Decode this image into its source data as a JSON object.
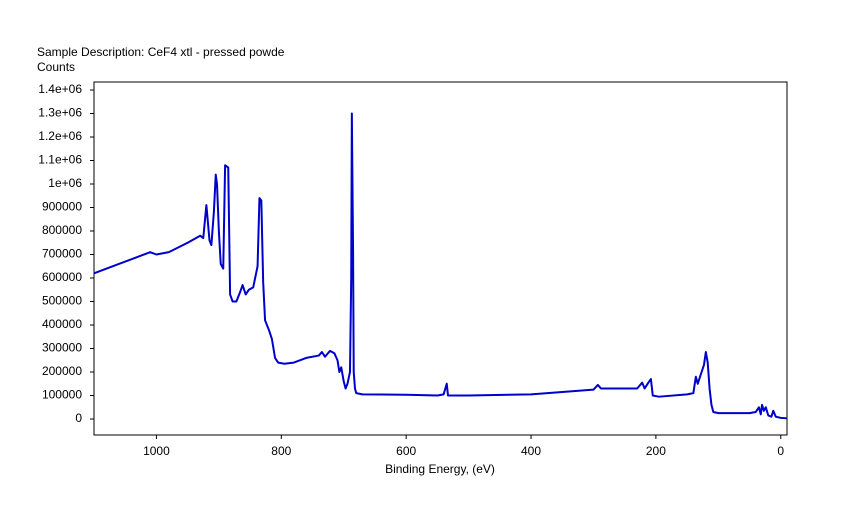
{
  "chart_data": {
    "type": "line",
    "title": "Sample Description:  CeF4 xtl - pressed powde",
    "y_label": "Counts",
    "x_label": "Binding Energy, (eV)",
    "x": [
      1100,
      1050,
      1010,
      1000,
      980,
      950,
      930,
      925,
      920,
      915,
      912,
      908,
      905,
      903,
      900,
      897,
      893,
      890,
      885,
      882,
      878,
      872,
      866,
      862,
      857,
      852,
      845,
      838,
      835,
      832,
      829,
      826,
      820,
      815,
      810,
      805,
      795,
      780,
      760,
      740,
      735,
      730,
      722,
      715,
      710,
      707,
      704,
      700,
      697,
      694,
      690,
      688,
      687,
      685,
      684,
      682,
      680,
      670,
      600,
      550,
      540,
      535,
      533,
      500,
      400,
      300,
      293,
      288,
      250,
      230,
      222,
      218,
      212,
      208,
      205,
      195,
      150,
      140,
      136,
      133,
      128,
      123,
      120,
      117,
      114,
      111,
      108,
      100,
      50,
      40,
      35,
      32,
      30,
      27,
      24,
      20,
      15,
      12,
      8,
      0,
      -10
    ],
    "series": [
      {
        "name": "Counts",
        "color": "#0000cc",
        "values": [
          620000,
          670000,
          710000,
          700000,
          710000,
          750000,
          780000,
          770000,
          910000,
          760000,
          740000,
          880000,
          1040000,
          1000000,
          800000,
          660000,
          640000,
          1080000,
          1070000,
          530000,
          500000,
          500000,
          540000,
          570000,
          530000,
          550000,
          560000,
          650000,
          940000,
          930000,
          580000,
          420000,
          380000,
          340000,
          260000,
          240000,
          235000,
          240000,
          260000,
          270000,
          285000,
          265000,
          290000,
          280000,
          250000,
          200000,
          220000,
          160000,
          130000,
          150000,
          200000,
          600000,
          1300000,
          700000,
          200000,
          130000,
          110000,
          105000,
          103000,
          100000,
          105000,
          150000,
          100000,
          100000,
          105000,
          125000,
          145000,
          130000,
          130000,
          130000,
          155000,
          130000,
          155000,
          170000,
          100000,
          95000,
          105000,
          110000,
          180000,
          150000,
          190000,
          230000,
          285000,
          240000,
          130000,
          60000,
          30000,
          25000,
          25000,
          30000,
          50000,
          20000,
          60000,
          35000,
          50000,
          15000,
          10000,
          35000,
          10000,
          5000,
          3000
        ]
      }
    ],
    "xlim": [
      1100,
      -10
    ],
    "xticks": [
      1000,
      800,
      600,
      400,
      200,
      0
    ],
    "ylim": [
      -68000,
      1434000
    ],
    "yticks": [
      0,
      100000,
      200000,
      300000,
      400000,
      500000,
      600000,
      700000,
      800000,
      900000,
      {
        "value": 1000000,
        "label": "1e+06"
      },
      {
        "value": 1100000,
        "label": "1.1e+06"
      },
      {
        "value": 1200000,
        "label": "1.2e+06"
      },
      {
        "value": 1300000,
        "label": "1.3e+06"
      },
      {
        "value": 1400000,
        "label": "1.4e+06"
      }
    ]
  }
}
